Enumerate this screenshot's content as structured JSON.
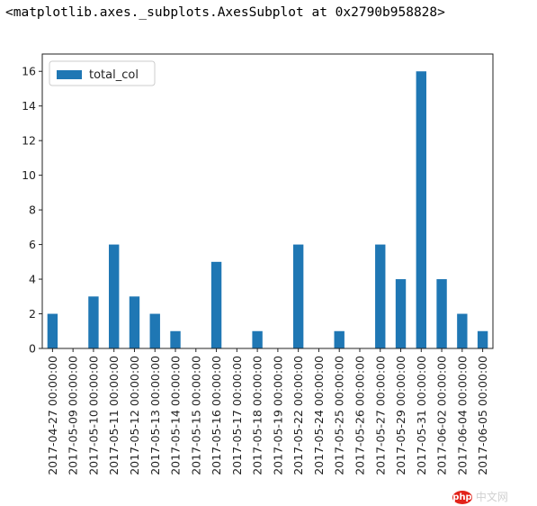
{
  "output_repr": "<matplotlib.axes._subplots.AxesSubplot at 0x2790b958828>",
  "chart_data": {
    "type": "bar",
    "categories": [
      "2017-04-27 00:00:00",
      "2017-05-09 00:00:00",
      "2017-05-10 00:00:00",
      "2017-05-11 00:00:00",
      "2017-05-12 00:00:00",
      "2017-05-13 00:00:00",
      "2017-05-14 00:00:00",
      "2017-05-15 00:00:00",
      "2017-05-16 00:00:00",
      "2017-05-17 00:00:00",
      "2017-05-18 00:00:00",
      "2017-05-19 00:00:00",
      "2017-05-22 00:00:00",
      "2017-05-24 00:00:00",
      "2017-05-25 00:00:00",
      "2017-05-26 00:00:00",
      "2017-05-27 00:00:00",
      "2017-05-29 00:00:00",
      "2017-05-31 00:00:00",
      "2017-06-02 00:00:00",
      "2017-06-04 00:00:00",
      "2017-06-05 00:00:00"
    ],
    "series": [
      {
        "name": "total_col",
        "values": [
          2,
          0,
          3,
          6,
          3,
          2,
          1,
          0,
          5,
          0,
          1,
          0,
          6,
          0,
          1,
          0,
          6,
          4,
          16,
          4,
          2,
          1
        ],
        "color": "#1f77b4"
      }
    ],
    "yticks": [
      0,
      2,
      4,
      6,
      8,
      10,
      12,
      14,
      16
    ],
    "ylim": [
      0,
      17
    ],
    "legend_position": "upper-left",
    "grid": false
  },
  "watermark": {
    "logo": "php",
    "text": "中文网"
  }
}
